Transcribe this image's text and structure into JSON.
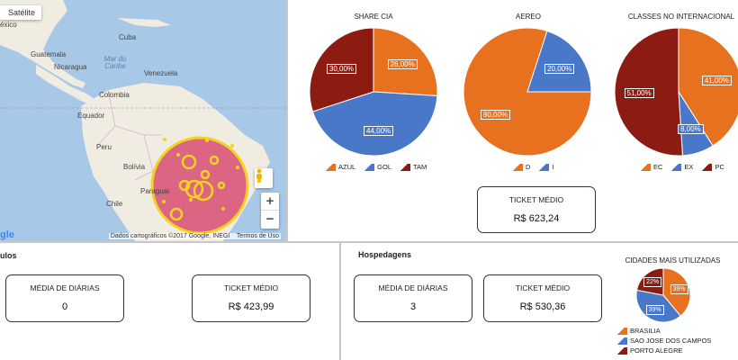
{
  "map": {
    "satellite_label": "Satélite",
    "credit": "Dados cartográficos ©2017 Google, INEGI",
    "terms": "Termos de Uso",
    "google": "gle",
    "zoom_in": "+",
    "zoom_out": "−",
    "labels": {
      "mexico": "éxico",
      "cuba": "Cuba",
      "guatemala": "Guatemala",
      "nicaragua": "Nicaragua",
      "mar_do_caribe": "Mar do Caribe",
      "venezuela": "Venezuela",
      "colombia": "Colombia",
      "equador": "Equador",
      "peru": "Peru",
      "bolivia": "Bolívia",
      "paraguai": "Paraguai",
      "chile": "Chile"
    },
    "colors": {
      "circle_fill": "#d9567a",
      "circle_stroke": "#f4d320",
      "marker": "#f4d320"
    }
  },
  "charts": {
    "share_cia": {
      "chart_data": {
        "type": "pie",
        "title": "SHARE CIA",
        "categories": [
          "AZUL",
          "GOL",
          "TAM"
        ],
        "values": [
          26,
          44,
          30
        ],
        "labels": [
          "26,00%",
          "44,00%",
          "30,00%"
        ],
        "colors": [
          "#e8711f",
          "#4a78c8",
          "#8c1c12"
        ],
        "legend": "bottom"
      }
    },
    "aereo": {
      "chart_data": {
        "type": "pie",
        "title": "AEREO",
        "categories": [
          "D",
          "I"
        ],
        "values": [
          80,
          20
        ],
        "labels": [
          "80,00%",
          "20,00%"
        ],
        "colors": [
          "#e8711f",
          "#4a78c8"
        ],
        "legend": "bottom"
      }
    },
    "classes": {
      "chart_data": {
        "type": "pie",
        "title": "CLASSES NO INTERNACIONAL",
        "categories": [
          "EC",
          "EX",
          "PC"
        ],
        "values": [
          41,
          8,
          51
        ],
        "labels": [
          "41,00%",
          "8,00%",
          "51,00%"
        ],
        "colors": [
          "#e8711f",
          "#4a78c8",
          "#8c1c12"
        ],
        "legend": "bottom"
      }
    },
    "cidades": {
      "chart_data": {
        "type": "pie",
        "title": "CIDADES MAIS UTILIZADAS",
        "categories": [
          "BRASILIA",
          "SAO JOSE DOS CAMPOS",
          "PORTO ALEGRE"
        ],
        "values": [
          39,
          39,
          22
        ],
        "labels": [
          "39%",
          "39%",
          "22%"
        ],
        "colors": [
          "#e8711f",
          "#4a78c8",
          "#8c1c12"
        ],
        "legend": "bottom"
      }
    }
  },
  "ticket_aereo": {
    "label": "TICKET MÉDIO",
    "value": "R$ 623,24"
  },
  "veiculos": {
    "title": "ulos",
    "media_label": "MÉDIA DE DIÁRIAS",
    "media_value": "0",
    "ticket_label": "TICKET MÉDIO",
    "ticket_value": "R$ 423,99"
  },
  "hospedagens": {
    "title": "Hospedagens",
    "media_label": "MÉDIA DE DIÁRIAS",
    "media_value": "3",
    "ticket_label": "TICKET MÉDIO",
    "ticket_value": "R$ 530,36"
  }
}
